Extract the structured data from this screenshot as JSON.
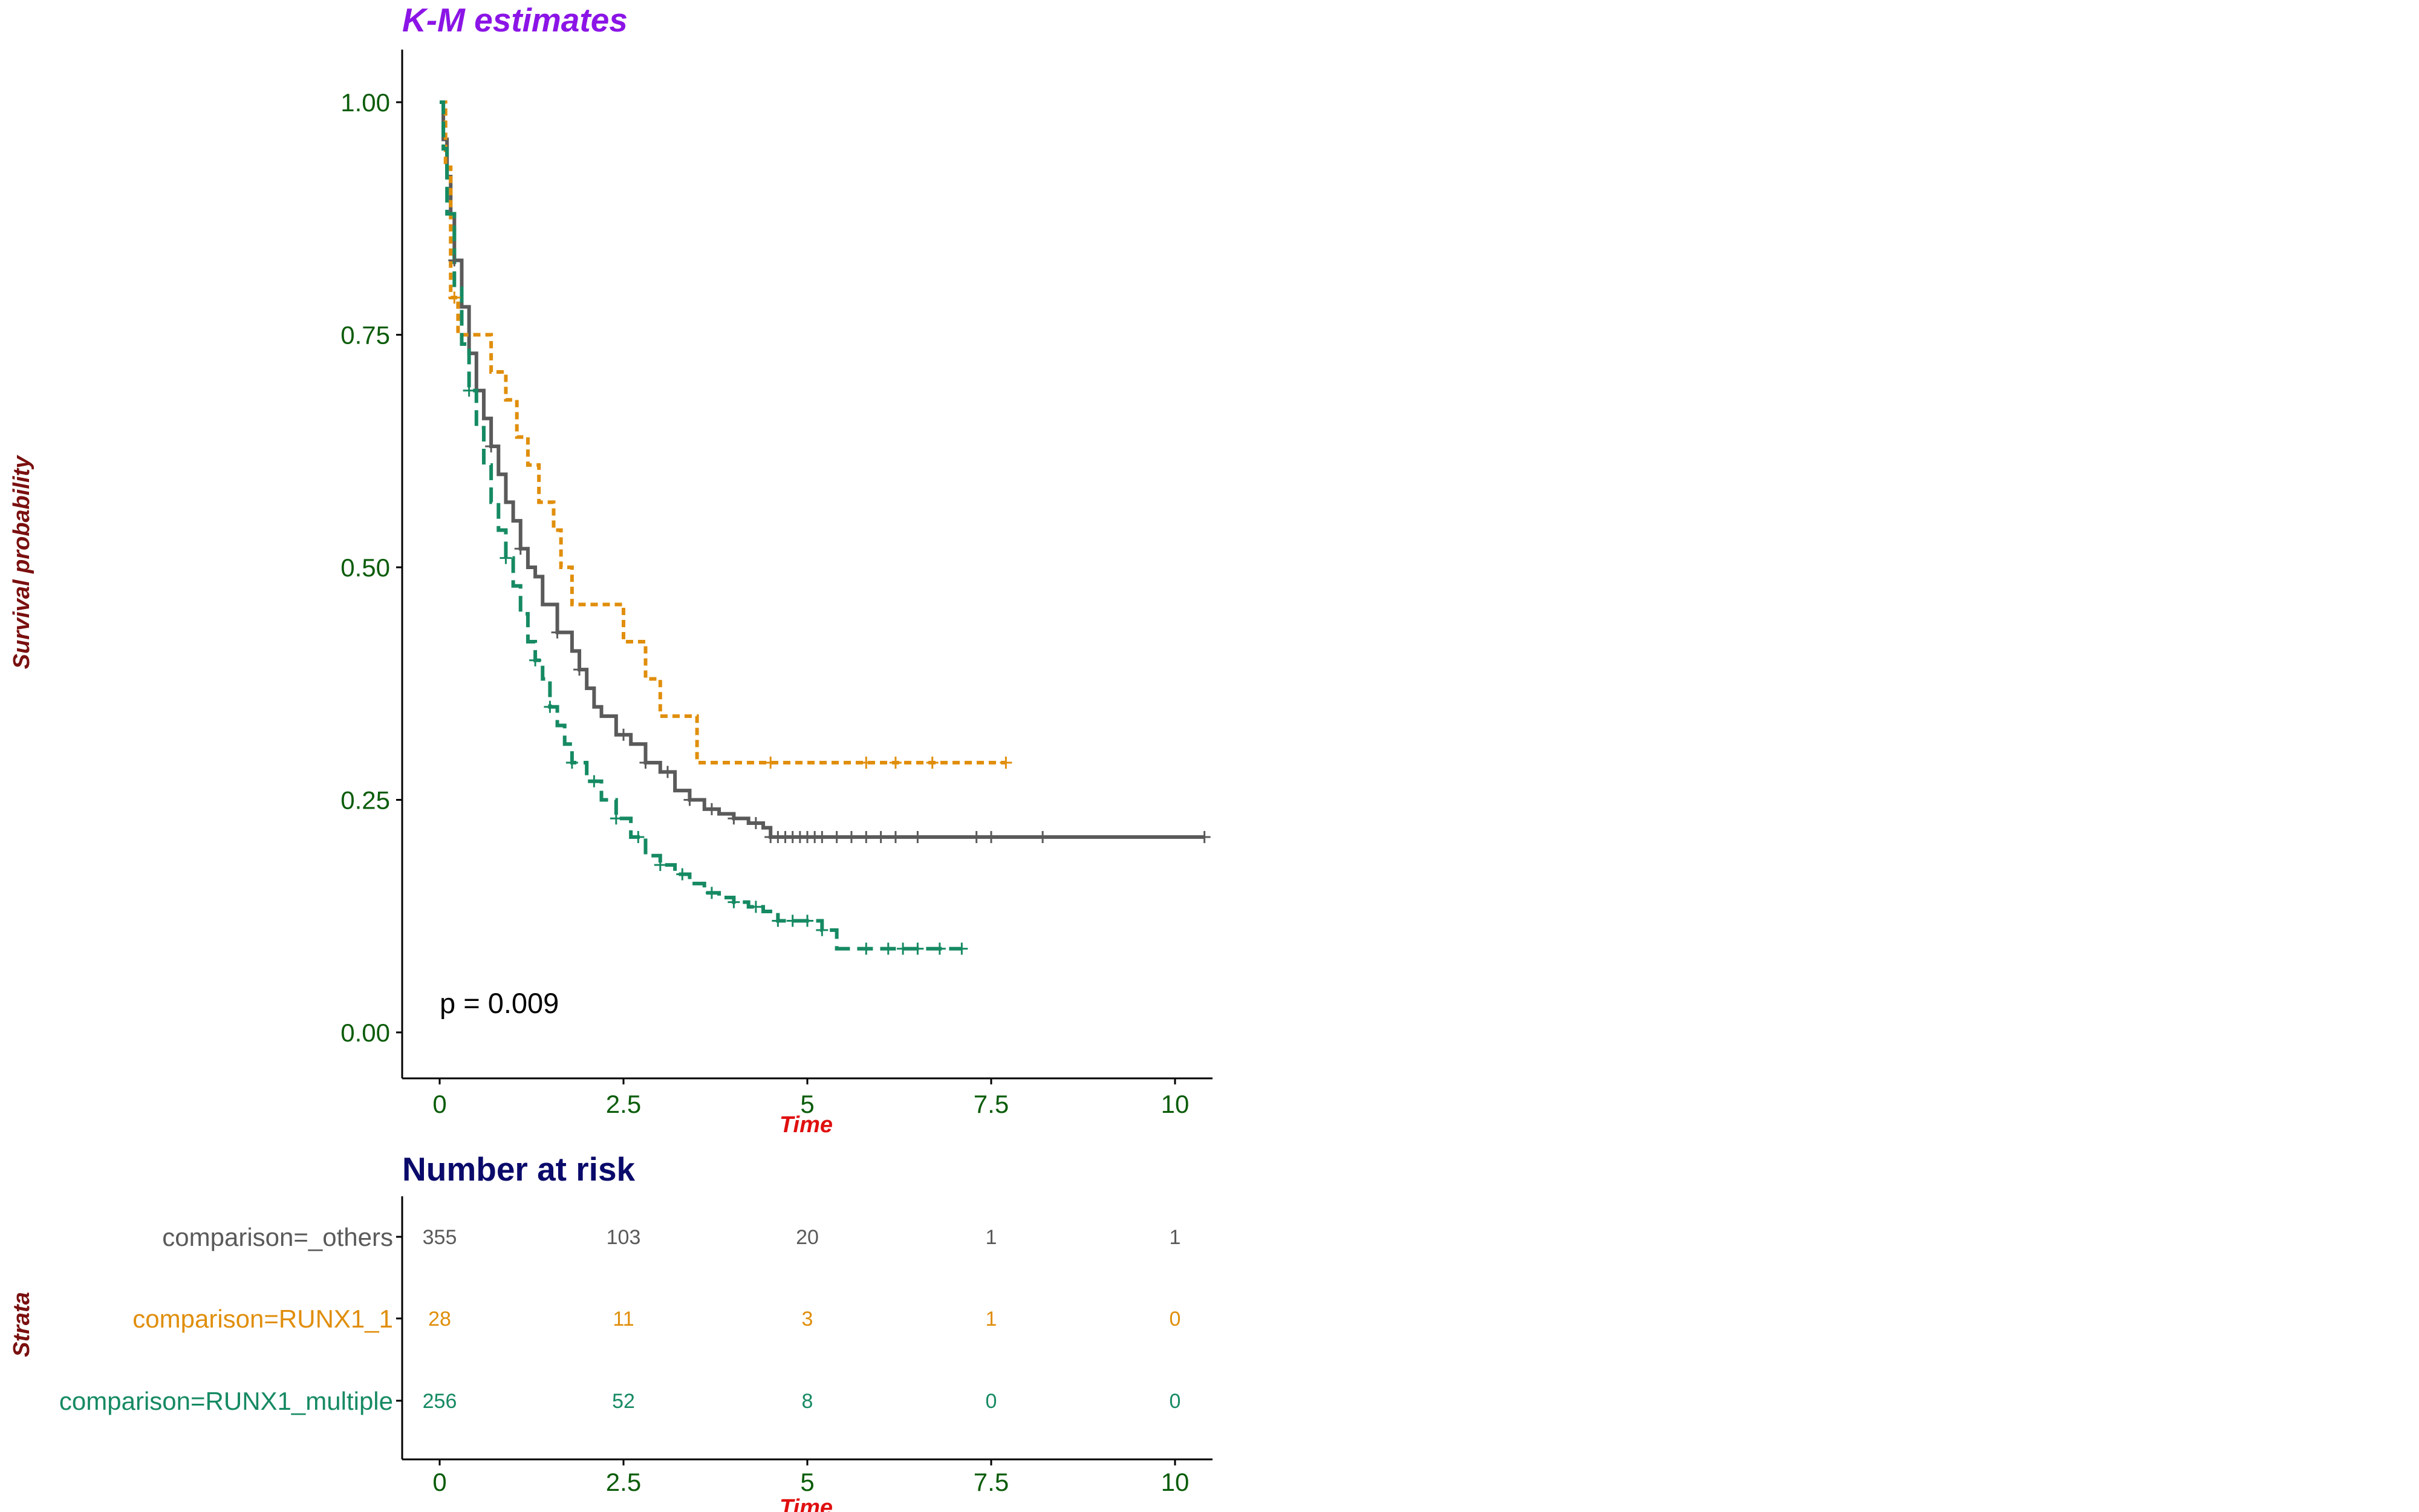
{
  "colors": {
    "others": "#5a5a5a",
    "runx1_1": "#e08e0b",
    "runx1_multiple": "#168a62",
    "title": "#8b14e6",
    "risk_title": "#0a0a6b",
    "axis_title_x": "#e01010",
    "axis_title_y": "#7a0f0f",
    "tick": "#0a5c0a"
  },
  "chart_data": [
    {
      "type": "line",
      "subtype": "kaplan-meier",
      "title": "K-M estimates",
      "xlabel": "Time",
      "ylabel": "Survival probability",
      "xlim": [
        -0.5,
        10.5
      ],
      "ylim": [
        -0.05,
        1.05
      ],
      "x_ticks": [
        "0",
        "2.5",
        "5",
        "7.5",
        "10"
      ],
      "x_tick_values": [
        0,
        2.5,
        5,
        7.5,
        10
      ],
      "y_ticks": [
        "0.00",
        "0.25",
        "0.50",
        "0.75",
        "1.00"
      ],
      "y_tick_values": [
        0,
        0.25,
        0.5,
        0.75,
        1.0
      ],
      "grid": false,
      "legend": "none",
      "annotation": "p = 0.009",
      "series": [
        {
          "key": "others",
          "line_style": "solid",
          "x": [
            0,
            0.05,
            0.1,
            0.15,
            0.2,
            0.3,
            0.4,
            0.5,
            0.6,
            0.7,
            0.8,
            0.9,
            1.0,
            1.1,
            1.2,
            1.3,
            1.4,
            1.6,
            1.8,
            1.9,
            2.0,
            2.1,
            2.2,
            2.4,
            2.6,
            2.8,
            3.0,
            3.2,
            3.4,
            3.6,
            3.8,
            4.0,
            4.2,
            4.4,
            4.5,
            10.4
          ],
          "y": [
            1.0,
            0.96,
            0.92,
            0.88,
            0.83,
            0.78,
            0.73,
            0.69,
            0.66,
            0.63,
            0.6,
            0.57,
            0.55,
            0.52,
            0.5,
            0.49,
            0.46,
            0.43,
            0.41,
            0.39,
            0.37,
            0.35,
            0.34,
            0.32,
            0.31,
            0.29,
            0.28,
            0.26,
            0.25,
            0.24,
            0.235,
            0.23,
            0.225,
            0.22,
            0.21,
            0.21
          ],
          "censor_x": [
            0.2,
            0.7,
            1.1,
            1.6,
            1.9,
            2.5,
            2.8,
            3.1,
            3.4,
            3.7,
            4.0,
            4.3,
            4.5,
            4.6,
            4.7,
            4.8,
            4.9,
            5.0,
            5.1,
            5.2,
            5.4,
            5.6,
            5.8,
            6.0,
            6.2,
            6.5,
            7.3,
            7.5,
            8.2,
            10.4
          ]
        },
        {
          "key": "runx1_1",
          "line_style": "dotted",
          "x": [
            0,
            0.08,
            0.15,
            0.25,
            0.7,
            0.9,
            1.05,
            1.2,
            1.35,
            1.55,
            1.65,
            1.8,
            2.5,
            2.8,
            3.0,
            3.5,
            3.6,
            7.7
          ],
          "y": [
            1.0,
            0.93,
            0.79,
            0.75,
            0.71,
            0.68,
            0.64,
            0.61,
            0.57,
            0.54,
            0.5,
            0.46,
            0.42,
            0.38,
            0.34,
            0.29,
            0.29,
            0.29
          ],
          "censor_x": [
            0.2,
            4.5,
            5.8,
            6.2,
            6.7,
            7.7
          ]
        },
        {
          "key": "runx1_multiple",
          "line_style": "dashed",
          "x": [
            0,
            0.05,
            0.1,
            0.2,
            0.3,
            0.4,
            0.5,
            0.6,
            0.7,
            0.8,
            0.9,
            1.0,
            1.1,
            1.2,
            1.3,
            1.4,
            1.5,
            1.6,
            1.7,
            1.8,
            2.0,
            2.2,
            2.4,
            2.6,
            2.8,
            3.0,
            3.2,
            3.4,
            3.6,
            3.8,
            4.0,
            4.2,
            4.4,
            4.6,
            5.2,
            5.4,
            7.1
          ],
          "y": [
            1.0,
            0.95,
            0.88,
            0.8,
            0.74,
            0.69,
            0.65,
            0.61,
            0.57,
            0.54,
            0.51,
            0.48,
            0.45,
            0.42,
            0.4,
            0.38,
            0.35,
            0.33,
            0.31,
            0.29,
            0.27,
            0.25,
            0.23,
            0.21,
            0.19,
            0.18,
            0.17,
            0.16,
            0.15,
            0.145,
            0.14,
            0.135,
            0.13,
            0.12,
            0.11,
            0.09,
            0.09
          ],
          "censor_x": [
            0.4,
            0.9,
            1.3,
            1.5,
            1.8,
            2.1,
            2.4,
            2.7,
            3.0,
            3.3,
            3.7,
            4.0,
            4.3,
            4.6,
            4.8,
            5.0,
            5.2,
            5.8,
            6.1,
            6.3,
            6.5,
            6.8,
            7.1
          ]
        }
      ]
    },
    {
      "type": "table",
      "title": "Number at risk",
      "xlabel": "Time",
      "ylabel": "Strata",
      "x_ticks": [
        "0",
        "2.5",
        "5",
        "7.5",
        "10"
      ],
      "x_tick_values": [
        0,
        2.5,
        5,
        7.5,
        10
      ],
      "rows": [
        {
          "key": "others",
          "label": "comparison=_others",
          "values": [
            "355",
            "103",
            "20",
            "1",
            "1"
          ]
        },
        {
          "key": "runx1_1",
          "label": "comparison=RUNX1_1",
          "values": [
            "28",
            "11",
            "3",
            "1",
            "0"
          ]
        },
        {
          "key": "runx1_multiple",
          "label": "comparison=RUNX1_multiple",
          "values": [
            "256",
            "52",
            "8",
            "0",
            "0"
          ]
        }
      ]
    }
  ]
}
